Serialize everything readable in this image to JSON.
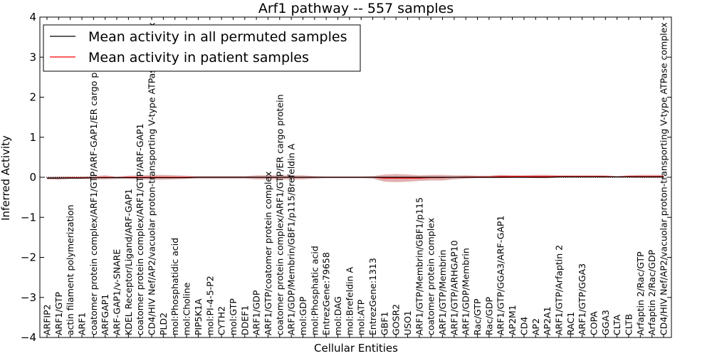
{
  "chart_data": {
    "type": "line",
    "title": "Arf1 pathway -- 557 samples",
    "xlabel": "Cellular Entities",
    "ylabel": "Inferred Activity",
    "ylim": [
      -4,
      4
    ],
    "yticks": [
      -4,
      -3,
      -2,
      -1,
      0,
      1,
      2,
      3,
      4
    ],
    "grid": false,
    "legend_position": "top-left",
    "categories": [
      "ARFIP2",
      "ARF1/GTP",
      "actin filament polymerization",
      "ARF1",
      "coatomer protein complex/ARF1/GTP/ARF-GAP1/ER cargo protein",
      "ARFGAP1",
      "ARF-GAP1/v-SNARE",
      "KDEL Receptor/Ligand/ARF-GAP1",
      "coatomer protein complex/ARF1/GTP/ARF-GAP1",
      "CD4/HIV Nef/AP2/vacuolar proton-transporting V-type ATPase complex",
      "PLD2",
      "mol:Phosphatidic acid",
      "mol:Choline",
      "PIP5K1A",
      "mol:PI-4-5-P2",
      "CYTH2",
      "mol:GTP",
      "DDEF1",
      "ARF1/GDP",
      "ARF1/GTP/coatomer protein complex",
      "coatomer protein complex/ARF1/GTP/ER cargo protein",
      "ARF1/GDP/Membrin/GBF1/p115/Brefeldin A",
      "mol:GDP",
      "mol:Phosphatic acid",
      "EntrezGene:79658",
      "mol:DAG",
      "mol:Brefeldin A",
      "mol:ATP",
      "EntrezGene:1313",
      "GBF1",
      "GOSR2",
      "USO1",
      "ARF1/GTP/Membrin/GBF1/p115",
      "coatomer protein complex",
      "ARF1/GTP/Membrin",
      "ARF1/GTP/ARHGAP10",
      "ARF1/GDP/Membrin",
      "Rac/GTP",
      "Rac/GDP",
      "ARF1/GTP/GGA3/ARF-GAP1",
      "AP2M1",
      "CD4",
      "AP2",
      "AP2A1",
      "ARF1/GTP/Arfaptin 2",
      "RAC1",
      "ARF1/GTP/GGA3",
      "COPA",
      "GGA3",
      "CLTA",
      "CLTB",
      "Arfaptin 2/Rac/GTP",
      "Arfaptin 2/Rac/GDP",
      "CD4/HIV Nef/AP2/vacuolar proton-transporting V-type ATPase complex"
    ],
    "series": [
      {
        "name": "Mean activity in all permuted samples",
        "color": "#000000",
        "values": [
          -0.02,
          -0.02,
          -0.02,
          -0.02,
          -0.01,
          -0.01,
          -0.01,
          -0.01,
          -0.01,
          -0.01,
          -0.01,
          -0.01,
          -0.01,
          0.0,
          0.0,
          0.0,
          0.0,
          0.0,
          0.0,
          0.0,
          0.0,
          0.0,
          0.0,
          0.0,
          0.0,
          0.0,
          0.0,
          0.0,
          0.0,
          0.0,
          0.0,
          0.0,
          0.0,
          0.0,
          0.0,
          0.0,
          0.0,
          0.0,
          0.0,
          0.0,
          0.0,
          0.0,
          0.0,
          0.0,
          0.01,
          0.01,
          0.01,
          0.01,
          0.01,
          0.01,
          0.01,
          0.01,
          0.01,
          0.01
        ]
      },
      {
        "name": "Mean activity in patient samples",
        "color": "#ff0000",
        "band_color": "#d9a3a3",
        "values": [
          -0.02,
          -0.02,
          -0.01,
          -0.01,
          -0.01,
          0.0,
          -0.01,
          0.0,
          0.0,
          0.0,
          0.0,
          0.0,
          0.0,
          0.0,
          0.0,
          0.0,
          0.0,
          0.0,
          0.0,
          0.0,
          0.0,
          0.0,
          0.0,
          0.0,
          0.0,
          0.0,
          0.0,
          0.0,
          0.0,
          -0.02,
          -0.02,
          -0.02,
          -0.02,
          -0.01,
          -0.01,
          0.0,
          0.01,
          0.01,
          0.01,
          0.02,
          0.02,
          0.02,
          0.02,
          0.02,
          0.02,
          0.02,
          0.02,
          0.02,
          0.02,
          0.01,
          0.02,
          0.02,
          0.02,
          0.02
        ],
        "spread": [
          0.03,
          0.04,
          0.03,
          0.03,
          0.04,
          0.05,
          0.03,
          0.04,
          0.05,
          0.06,
          0.06,
          0.05,
          0.04,
          0.03,
          0.03,
          0.03,
          0.03,
          0.03,
          0.05,
          0.05,
          0.05,
          0.05,
          0.05,
          0.03,
          0.02,
          0.02,
          0.02,
          0.02,
          0.03,
          0.09,
          0.1,
          0.09,
          0.07,
          0.07,
          0.07,
          0.05,
          0.04,
          0.03,
          0.03,
          0.04,
          0.03,
          0.03,
          0.04,
          0.04,
          0.03,
          0.03,
          0.03,
          0.03,
          0.03,
          0.02,
          0.03,
          0.04,
          0.04,
          0.04
        ]
      }
    ]
  }
}
